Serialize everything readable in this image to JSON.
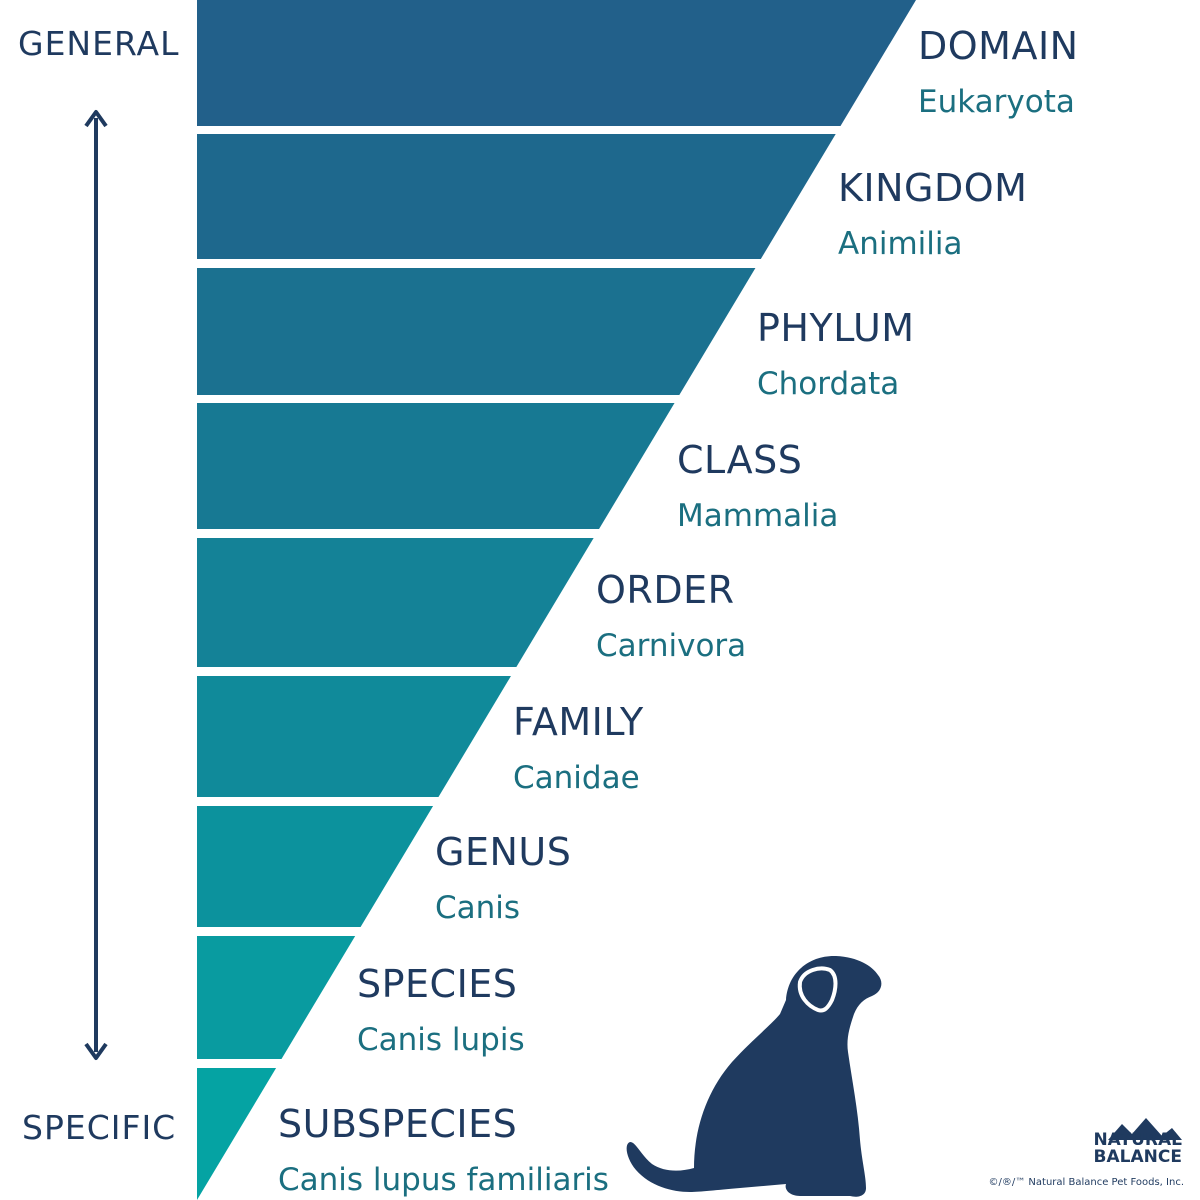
{
  "axis": {
    "top_label": "GENERAL",
    "bottom_label": "SPECIFIC"
  },
  "colors": {
    "rank_text": "#1f3a5f",
    "taxon_text": "#1b6f80",
    "band_top": "#22608a",
    "band_bottom": "#05a3a3",
    "arrow": "#1f3a5f",
    "dog": "#1f3a5f"
  },
  "ranks": [
    {
      "rank": "DOMAIN",
      "taxon": "Eukaryota"
    },
    {
      "rank": "KINGDOM",
      "taxon": "Animilia"
    },
    {
      "rank": "PHYLUM",
      "taxon": "Chordata"
    },
    {
      "rank": "CLASS",
      "taxon": "Mammalia"
    },
    {
      "rank": "ORDER",
      "taxon": "Carnivora"
    },
    {
      "rank": "FAMILY",
      "taxon": "Canidae"
    },
    {
      "rank": "GENUS",
      "taxon": "Canis"
    },
    {
      "rank": "SPECIES",
      "taxon": "Canis lupis"
    },
    {
      "rank": "SUBSPECIES",
      "taxon": "Canis lupus familiaris"
    }
  ],
  "illustration": {
    "icon": "dog-silhouette-icon"
  },
  "brand": {
    "name_line1": "NATURAL",
    "name_line2": "BALANCE",
    "copyright": "©/®/™ Natural Balance Pet Foods, Inc."
  }
}
